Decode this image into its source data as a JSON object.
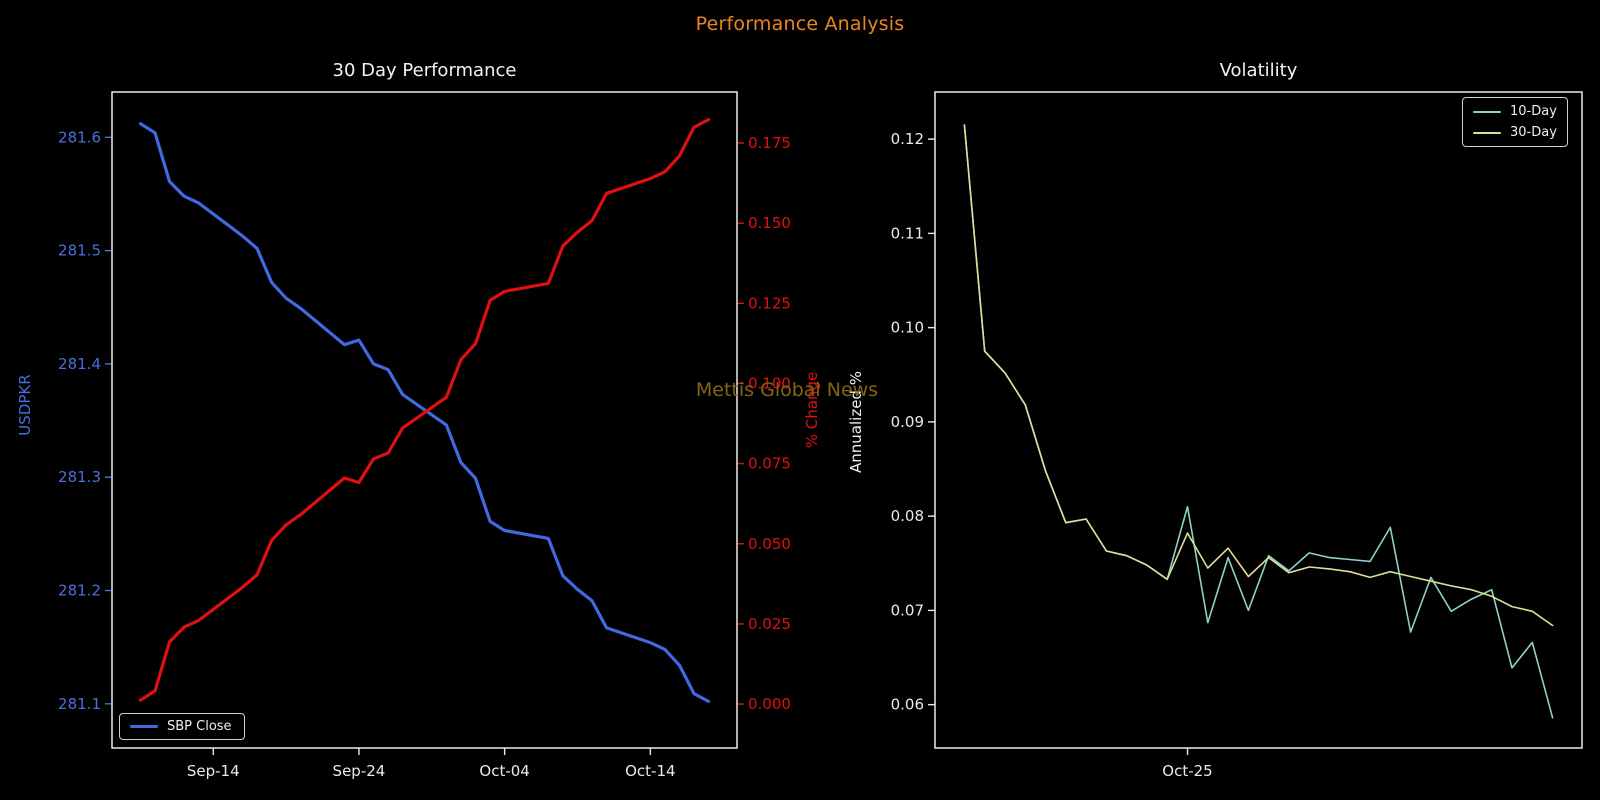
{
  "figure": {
    "title": "Performance Analysis",
    "title_color": "#ec8420",
    "background": "#000000",
    "watermark": "Mettis Global News",
    "watermark_color": "#8a6a15",
    "spine_color": "#eaeaea",
    "tick_text_color": "#eaeaea"
  },
  "chart_data": [
    {
      "type": "line",
      "title": "30 Day Performance",
      "xlim": [
        -1.95,
        40.95
      ],
      "x_ticks": [
        {
          "v": 5,
          "label": "Sep-14"
        },
        {
          "v": 15,
          "label": "Sep-24"
        },
        {
          "v": 25,
          "label": "Oct-04"
        },
        {
          "v": 35,
          "label": "Oct-14"
        }
      ],
      "axes": {
        "left": {
          "label": "USDPKR",
          "color": "#4a6fdc",
          "lim": [
            281.061,
            281.64
          ],
          "ticks": [
            {
              "v": 281.1,
              "label": "281.1"
            },
            {
              "v": 281.2,
              "label": "281.2"
            },
            {
              "v": 281.3,
              "label": "281.3"
            },
            {
              "v": 281.4,
              "label": "281.4"
            },
            {
              "v": 281.5,
              "label": "281.5"
            },
            {
              "v": 281.6,
              "label": "281.6"
            }
          ]
        },
        "right": {
          "label": "% Change",
          "color": "#e01010",
          "lim": [
            -0.0137,
            0.1909
          ],
          "ticks": [
            {
              "v": 0.0,
              "label": "0.000"
            },
            {
              "v": 0.025,
              "label": "0.025"
            },
            {
              "v": 0.05,
              "label": "0.050"
            },
            {
              "v": 0.075,
              "label": "0.075"
            },
            {
              "v": 0.1,
              "label": "0.100"
            },
            {
              "v": 0.125,
              "label": "0.125"
            },
            {
              "v": 0.15,
              "label": "0.150"
            },
            {
              "v": 0.175,
              "label": "0.175"
            }
          ]
        }
      },
      "series": [
        {
          "name": "SBP Close",
          "axis": "left",
          "color": "#4169e1",
          "width": 3.2,
          "x": [
            0,
            1,
            2,
            3,
            4,
            7,
            8,
            9,
            10,
            11,
            14,
            15,
            16,
            17,
            18,
            21,
            22,
            23,
            24,
            25,
            28,
            29,
            30,
            31,
            32,
            35,
            36,
            37,
            38,
            39
          ],
          "values": [
            281.612,
            281.604,
            281.561,
            281.548,
            281.542,
            281.513,
            281.502,
            281.472,
            281.458,
            281.449,
            281.417,
            281.421,
            281.4,
            281.395,
            281.373,
            281.346,
            281.313,
            281.299,
            281.261,
            281.253,
            281.246,
            281.213,
            281.201,
            281.191,
            281.167,
            281.154,
            281.148,
            281.134,
            281.109,
            281.102
          ]
        },
        {
          "name": "% Change",
          "axis": "right",
          "color": "#e01010",
          "width": 3.2,
          "x": [
            0,
            1,
            2,
            3,
            4,
            7,
            8,
            9,
            10,
            11,
            14,
            15,
            16,
            17,
            18,
            21,
            22,
            23,
            24,
            25,
            28,
            29,
            30,
            31,
            32,
            35,
            36,
            37,
            38,
            39
          ],
          "values": [
            0.0012,
            0.0041,
            0.0194,
            0.024,
            0.0261,
            0.0364,
            0.0403,
            0.051,
            0.0559,
            0.0591,
            0.0705,
            0.0691,
            0.0765,
            0.0783,
            0.0861,
            0.0957,
            0.1074,
            0.1124,
            0.1259,
            0.1287,
            0.1312,
            0.1429,
            0.1472,
            0.1508,
            0.1593,
            0.1639,
            0.166,
            0.171,
            0.1799,
            0.1823
          ]
        }
      ],
      "legend_entries": [
        "SBP Close"
      ]
    },
    {
      "type": "line",
      "title": "Volatility",
      "xlim": [
        -1.45,
        30.45
      ],
      "x_ticks": [
        {
          "v": 11,
          "label": "Oct-25"
        }
      ],
      "axes": {
        "left": {
          "label": "Annualized %",
          "color": "#eaeaea",
          "lim": [
            0.0554,
            0.125
          ],
          "ticks": [
            {
              "v": 0.06,
              "label": "0.06"
            },
            {
              "v": 0.07,
              "label": "0.07"
            },
            {
              "v": 0.08,
              "label": "0.08"
            },
            {
              "v": 0.09,
              "label": "0.09"
            },
            {
              "v": 0.1,
              "label": "0.10"
            },
            {
              "v": 0.11,
              "label": "0.11"
            },
            {
              "v": 0.12,
              "label": "0.12"
            }
          ]
        }
      },
      "series": [
        {
          "name": "10-Day",
          "axis": "left",
          "color": "#8dd3c7",
          "width": 1.6,
          "x": [
            0,
            1,
            2,
            3,
            4,
            5,
            6,
            7,
            8,
            9,
            10,
            11,
            12,
            13,
            14,
            15,
            16,
            17,
            18,
            19,
            20,
            21,
            22,
            23,
            24,
            25,
            26,
            27,
            28,
            29
          ],
          "values": [
            0.1215,
            0.0975,
            0.0952,
            0.0918,
            0.0848,
            0.0793,
            0.0797,
            0.0763,
            0.0758,
            0.0748,
            0.0733,
            0.081,
            0.0687,
            0.0756,
            0.07,
            0.0758,
            0.0742,
            0.0761,
            0.0756,
            0.0754,
            0.0752,
            0.0788,
            0.0677,
            0.0735,
            0.0699,
            0.0712,
            0.0722,
            0.0639,
            0.0666,
            0.0586
          ]
        },
        {
          "name": "30-Day",
          "axis": "left",
          "color": "#dede96",
          "width": 1.6,
          "x": [
            0,
            1,
            2,
            3,
            4,
            5,
            6,
            7,
            8,
            9,
            10,
            11,
            12,
            13,
            14,
            15,
            16,
            17,
            18,
            19,
            20,
            21,
            22,
            23,
            24,
            25,
            26,
            27,
            28,
            29
          ],
          "values": [
            0.1215,
            0.0975,
            0.0952,
            0.0918,
            0.0848,
            0.0793,
            0.0797,
            0.0763,
            0.0758,
            0.0748,
            0.0733,
            0.0782,
            0.0745,
            0.0766,
            0.0736,
            0.0756,
            0.074,
            0.0746,
            0.0744,
            0.0741,
            0.0735,
            0.0741,
            0.0736,
            0.0731,
            0.0726,
            0.0722,
            0.0715,
            0.0704,
            0.0699,
            0.0684
          ]
        }
      ],
      "legend_entries": [
        "10-Day",
        "30-Day"
      ]
    }
  ]
}
